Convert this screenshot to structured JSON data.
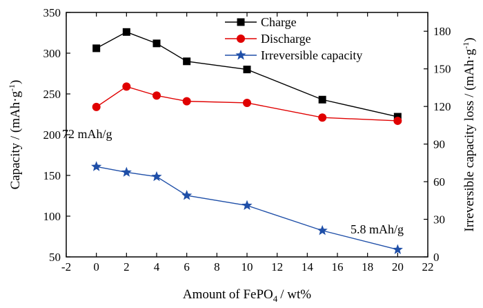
{
  "chart_data": {
    "type": "line",
    "xlabel_main": "Amount of FePO",
    "xlabel_sub": "4",
    "xlabel_tail": "/ wt%",
    "ylabel_left": "Capacity / (mAh·g",
    "ylabel_left_sup": "-1",
    "ylabel_left_tail": ")",
    "ylabel_right": "Irreversible capacity loss / (mAh·g",
    "ylabel_right_sup": "-1",
    "ylabel_right_tail": ")",
    "xlim": [
      -2,
      22
    ],
    "ylim_left": [
      50,
      350
    ],
    "ylim_right": [
      0,
      195
    ],
    "x_ticks": [
      "-2",
      "0",
      "2",
      "4",
      "6",
      "8",
      "10",
      "12",
      "14",
      "16",
      "18",
      "20",
      "22"
    ],
    "y_left_ticks": [
      "50",
      "100",
      "150",
      "200",
      "250",
      "300",
      "350"
    ],
    "y_right_ticks": [
      "0",
      "30",
      "60",
      "90",
      "120",
      "150",
      "180"
    ],
    "legend_position": "top-right",
    "x": [
      0,
      2,
      4,
      6,
      10,
      15,
      20
    ],
    "series": [
      {
        "name": "Charge",
        "axis": "left",
        "marker": "square",
        "color": "#000000",
        "values": [
          306,
          326,
          312,
          290,
          280,
          243,
          222
        ]
      },
      {
        "name": "Discharge",
        "axis": "left",
        "marker": "circle",
        "color": "#e00000",
        "values": [
          234,
          259,
          248,
          241,
          239,
          221,
          217
        ]
      },
      {
        "name": "Irreversible capacity",
        "axis": "right",
        "marker": "star",
        "color": "#1f4fa8",
        "values": [
          72,
          67.5,
          64,
          49,
          41,
          21,
          5.8
        ]
      }
    ],
    "annotations": {
      "first": "72 mAh/g",
      "last": "5.8 mAh/g"
    }
  }
}
